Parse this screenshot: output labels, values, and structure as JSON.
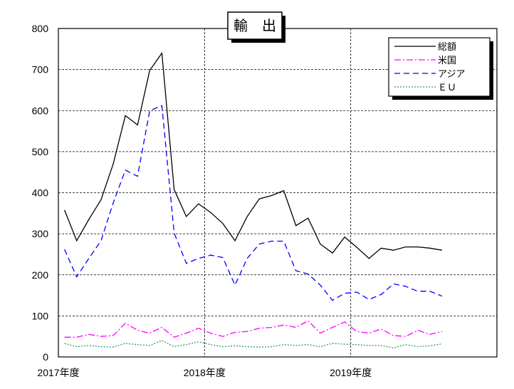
{
  "chart_data": {
    "type": "line",
    "title": "輸　出",
    "xlabel": "",
    "ylabel": "",
    "ylim": [
      0,
      800
    ],
    "yticks": [
      0,
      100,
      200,
      300,
      400,
      500,
      600,
      700,
      800
    ],
    "xlim": [
      0,
      36
    ],
    "xticks": [
      {
        "x": 0,
        "label": "2017年度"
      },
      {
        "x": 12,
        "label": "2018年度"
      },
      {
        "x": 24,
        "label": "2019年度"
      }
    ],
    "grid": true,
    "legend_position": "top-right",
    "series": [
      {
        "name": "総額",
        "color": "#000000",
        "dash": "solid",
        "x": [
          0.5,
          1.5,
          2.5,
          3.5,
          4.5,
          5.5,
          6.5,
          7.5,
          8.5,
          9.5,
          10.5,
          11.5,
          12.5,
          13.5,
          14.5,
          15.5,
          16.5,
          17.5,
          18.5,
          19.5,
          20.5,
          21.5,
          22.5,
          23.5,
          24.5,
          25.5,
          26.5,
          27.5,
          28.5,
          29.5,
          30.5,
          31.5
        ],
        "values": [
          358,
          283,
          335,
          383,
          470,
          588,
          565,
          698,
          740,
          408,
          342,
          373,
          352,
          325,
          283,
          342,
          385,
          393,
          405,
          320,
          338,
          275,
          253,
          292,
          267,
          240,
          265,
          260,
          268,
          268,
          265,
          260
        ]
      },
      {
        "name": "米国",
        "color": "#ff00ff",
        "dash": "dashdot",
        "x": [
          0.5,
          1.5,
          2.5,
          3.5,
          4.5,
          5.5,
          6.5,
          7.5,
          8.5,
          9.5,
          10.5,
          11.5,
          12.5,
          13.5,
          14.5,
          15.5,
          16.5,
          17.5,
          18.5,
          19.5,
          20.5,
          21.5,
          22.5,
          23.5,
          24.5,
          25.5,
          26.5,
          27.5,
          28.5,
          29.5,
          30.5,
          31.5
        ],
        "values": [
          48,
          48,
          55,
          50,
          52,
          82,
          65,
          58,
          72,
          48,
          58,
          70,
          58,
          50,
          60,
          62,
          70,
          72,
          78,
          72,
          88,
          58,
          72,
          85,
          62,
          58,
          68,
          52,
          50,
          65,
          55,
          62
        ]
      },
      {
        "name": "アジア",
        "color": "#0000ff",
        "dash": "dash",
        "x": [
          0.5,
          1.5,
          2.5,
          3.5,
          4.5,
          5.5,
          6.5,
          7.5,
          8.5,
          9.5,
          10.5,
          11.5,
          12.5,
          13.5,
          14.5,
          15.5,
          16.5,
          17.5,
          18.5,
          19.5,
          20.5,
          21.5,
          22.5,
          23.5,
          24.5,
          25.5,
          26.5,
          27.5,
          28.5,
          29.5,
          30.5,
          31.5
        ],
        "values": [
          262,
          195,
          240,
          283,
          375,
          455,
          440,
          600,
          612,
          302,
          228,
          240,
          248,
          242,
          175,
          240,
          275,
          282,
          282,
          210,
          202,
          175,
          138,
          155,
          158,
          140,
          152,
          178,
          172,
          160,
          160,
          148
        ]
      },
      {
        "name": "ＥＵ",
        "color": "#339966",
        "dash": "dot",
        "x": [
          0.5,
          1.5,
          2.5,
          3.5,
          4.5,
          5.5,
          6.5,
          7.5,
          8.5,
          9.5,
          10.5,
          11.5,
          12.5,
          13.5,
          14.5,
          15.5,
          16.5,
          17.5,
          18.5,
          19.5,
          20.5,
          21.5,
          22.5,
          23.5,
          24.5,
          25.5,
          26.5,
          27.5,
          28.5,
          29.5,
          30.5,
          31.5
        ],
        "values": [
          33,
          25,
          28,
          25,
          24,
          33,
          30,
          28,
          40,
          25,
          30,
          37,
          30,
          25,
          27,
          25,
          24,
          25,
          30,
          28,
          30,
          25,
          33,
          31,
          30,
          28,
          28,
          22,
          30,
          25,
          27,
          32
        ]
      }
    ]
  }
}
